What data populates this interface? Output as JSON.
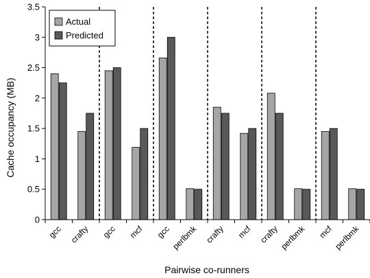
{
  "chart_data": {
    "type": "bar",
    "title": "",
    "xlabel": "Pairwise co-runners",
    "ylabel": "Cache occupancy (MB)",
    "ylim": [
      0,
      3.5
    ],
    "yticks": [
      0,
      0.5,
      1,
      1.5,
      2,
      2.5,
      3,
      3.5
    ],
    "ytick_labels": [
      "0",
      "0.5",
      "1",
      "1.5",
      "2",
      "2.5",
      "3",
      "3.5"
    ],
    "categories": [
      "gcc",
      "crafty",
      "gcc",
      "mcf",
      "gcc",
      "perlbmk",
      "crafty",
      "mcf",
      "crafty",
      "perlbmk",
      "mcf",
      "perlbmk"
    ],
    "pair_separators_after_index": [
      1,
      3,
      5,
      7,
      9
    ],
    "legend_position": "top-left",
    "grid": false,
    "series": [
      {
        "name": "Actual",
        "color": "#a6a6a6",
        "values": [
          2.4,
          1.45,
          2.45,
          1.19,
          2.66,
          0.51,
          1.85,
          1.42,
          2.08,
          0.51,
          1.45,
          0.51
        ]
      },
      {
        "name": "Predicted",
        "color": "#595959",
        "values": [
          2.25,
          1.75,
          2.5,
          1.5,
          3.0,
          0.5,
          1.75,
          1.5,
          1.75,
          0.5,
          1.5,
          0.5
        ]
      }
    ]
  }
}
